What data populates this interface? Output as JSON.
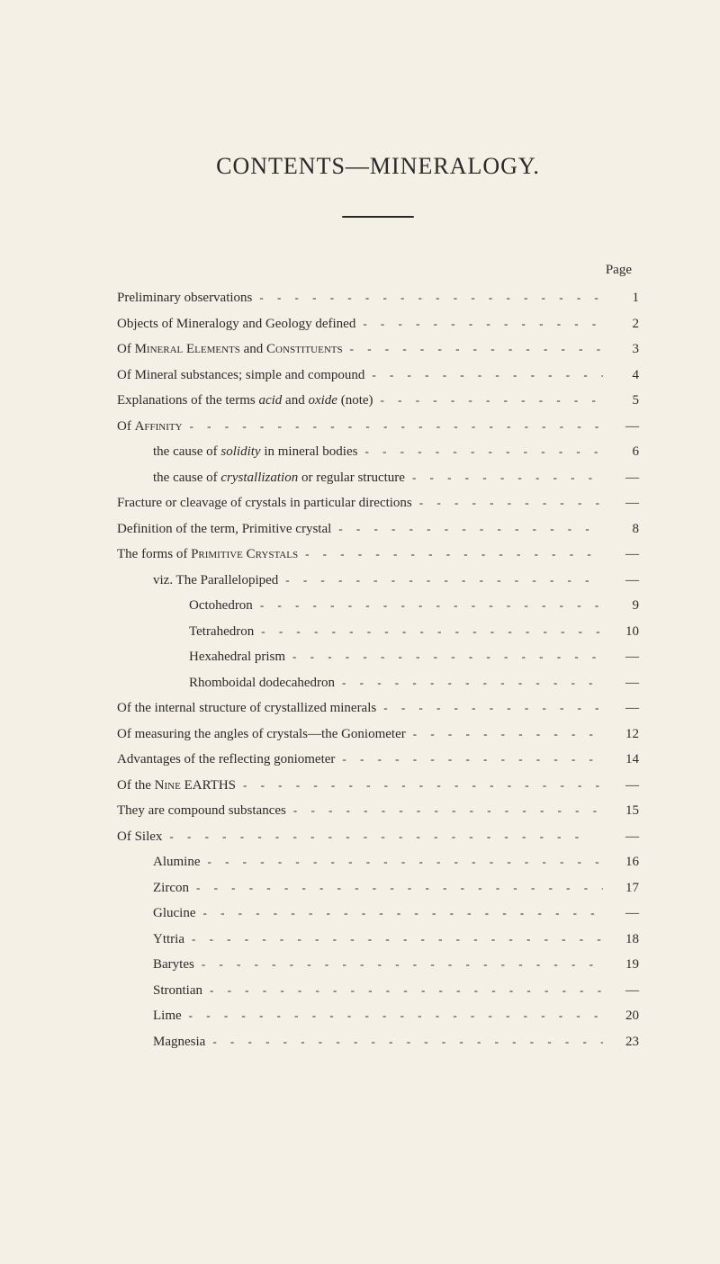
{
  "title": "CONTENTS—MINERALOGY.",
  "pageHeader": "Page",
  "typography": {
    "title_fontsize": 26,
    "body_fontsize": 15,
    "font_family": "Georgia, Times New Roman, serif",
    "text_color": "#2a2a2a",
    "background_color": "#f5f0e6",
    "line_height": 1.9
  },
  "entries": [
    {
      "html": "Preliminary observations",
      "page": "1",
      "indent": 0
    },
    {
      "html": "Objects of Mineralogy and Geology defined",
      "page": "2",
      "indent": 0
    },
    {
      "html": "Of <span class='smallcaps-inline'>Mineral Elements</span> and <span class='smallcaps-inline'>Constituents</span>",
      "page": "3",
      "indent": 0
    },
    {
      "html": "Of Mineral substances; simple and compound",
      "page": "4",
      "indent": 0
    },
    {
      "html": "Explanations of the terms <i>acid</i> and <i>oxide</i> (note)",
      "page": "5",
      "indent": 0
    },
    {
      "html": "Of <span class='smallcaps-inline'>Affinity</span>",
      "page": "—",
      "indent": 0
    },
    {
      "html": "the cause of <i>solidity</i> in mineral bodies",
      "page": "6",
      "indent": 1
    },
    {
      "html": "the cause of <i>crystallization</i> or regular structure",
      "page": "—",
      "indent": 1
    },
    {
      "html": "Fracture or cleavage of crystals in particular directions",
      "page": "—",
      "indent": 0
    },
    {
      "html": "Definition of the term, Primitive crystal",
      "page": "8",
      "indent": 0
    },
    {
      "html": "The forms of <span class='smallcaps-inline'>Primitive Crystals</span>",
      "page": "—",
      "indent": 0
    },
    {
      "html": "viz. The Parallelopiped",
      "page": "—",
      "indent": 1
    },
    {
      "html": "Octohedron",
      "page": "9",
      "indent": 2
    },
    {
      "html": "Tetrahedron",
      "page": "10",
      "indent": 2
    },
    {
      "html": "Hexahedral prism",
      "page": "—",
      "indent": 2
    },
    {
      "html": "Rhomboidal dodecahedron",
      "page": "—",
      "indent": 2
    },
    {
      "html": "Of the internal structure of crystallized minerals",
      "page": "—",
      "indent": 0
    },
    {
      "html": "Of measuring the angles of crystals—the Goniometer",
      "page": "12",
      "indent": 0
    },
    {
      "html": "Advantages of the reflecting goniometer",
      "page": "14",
      "indent": 0
    },
    {
      "html": "Of the <span class='smallcaps-inline'>Nine</span> EARTHS",
      "page": "—",
      "indent": 0
    },
    {
      "html": "They are compound substances",
      "page": "15",
      "indent": 0
    },
    {
      "html": "Of Silex",
      "page": "—",
      "indent": 0
    },
    {
      "html": "Alumine",
      "page": "16",
      "indent": 1
    },
    {
      "html": "Zircon",
      "page": "17",
      "indent": 1
    },
    {
      "html": "Glucine",
      "page": "—",
      "indent": 1
    },
    {
      "html": "Yttria",
      "page": "18",
      "indent": 1
    },
    {
      "html": "Barytes",
      "page": "19",
      "indent": 1
    },
    {
      "html": "Strontian",
      "page": "—",
      "indent": 1
    },
    {
      "html": "Lime",
      "page": "20",
      "indent": 1
    },
    {
      "html": "Magnesia",
      "page": "23",
      "indent": 1
    }
  ]
}
